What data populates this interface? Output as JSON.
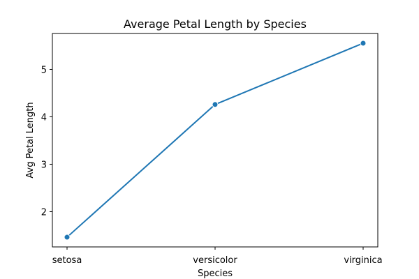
{
  "chart_data": {
    "type": "line",
    "title": "Average Petal Length by Species",
    "xlabel": "Species",
    "ylabel": "Avg Petal Length",
    "categories": [
      "setosa",
      "versicolor",
      "virginica"
    ],
    "series": [
      {
        "name": "Avg Petal Length",
        "values": [
          1.462,
          4.26,
          5.552
        ],
        "color": "#1f77b4",
        "marker": "circle"
      }
    ],
    "ylim": [
      1.257,
      5.757
    ],
    "yticks": [
      2,
      3,
      4,
      5
    ],
    "grid": false,
    "legend": "none"
  }
}
